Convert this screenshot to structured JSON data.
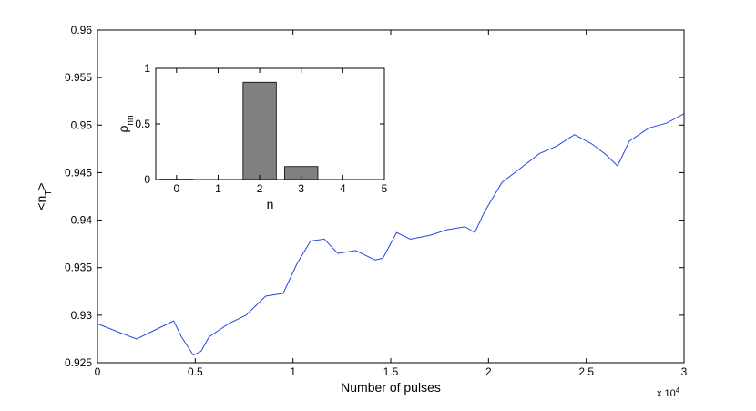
{
  "chart_data": [
    {
      "type": "line",
      "xlabel": "Number of pulses",
      "x_multiplier": [
        "x 10",
        "4"
      ],
      "ylabel": [
        "<n",
        "T",
        ">"
      ],
      "color": "#2a46e0",
      "x": [
        0,
        0.11,
        0.2,
        0.3,
        0.39,
        0.43,
        0.49,
        0.53,
        0.57,
        0.67,
        0.76,
        0.86,
        0.95,
        1.02,
        1.09,
        1.16,
        1.23,
        1.32,
        1.42,
        1.46,
        1.53,
        1.6,
        1.7,
        1.79,
        1.88,
        1.93,
        1.98,
        2.07,
        2.16,
        2.26,
        2.35,
        2.44,
        2.53,
        2.6,
        2.66,
        2.72,
        2.82,
        2.91,
        3.0
      ],
      "values": [
        0.9291,
        0.9282,
        0.9275,
        0.9285,
        0.9294,
        0.9277,
        0.9258,
        0.9262,
        0.9277,
        0.9291,
        0.93,
        0.932,
        0.9323,
        0.9354,
        0.9378,
        0.938,
        0.9365,
        0.9368,
        0.9358,
        0.936,
        0.9387,
        0.938,
        0.9384,
        0.939,
        0.9393,
        0.9387,
        0.9409,
        0.944,
        0.9454,
        0.947,
        0.9478,
        0.949,
        0.948,
        0.9469,
        0.9457,
        0.9483,
        0.9497,
        0.9502,
        0.9512
      ],
      "xlim": [
        0,
        3
      ],
      "xticks": [
        0,
        0.5,
        1,
        1.5,
        2,
        2.5,
        3
      ],
      "ylim": [
        0.925,
        0.96
      ],
      "yticks": [
        0.925,
        0.93,
        0.935,
        0.94,
        0.945,
        0.95,
        0.955,
        0.96
      ]
    },
    {
      "type": "bar",
      "xlabel": "n",
      "ylabel": [
        "ρ",
        "nn"
      ],
      "color": "#808080",
      "x": [
        0,
        2,
        3
      ],
      "values": [
        0.003,
        0.875,
        0.117
      ],
      "xlim": [
        -0.5,
        5
      ],
      "xticks": [
        0,
        1,
        2,
        3,
        4,
        5
      ],
      "ylim": [
        0,
        1
      ],
      "yticks": [
        0,
        0.5,
        1
      ]
    }
  ]
}
